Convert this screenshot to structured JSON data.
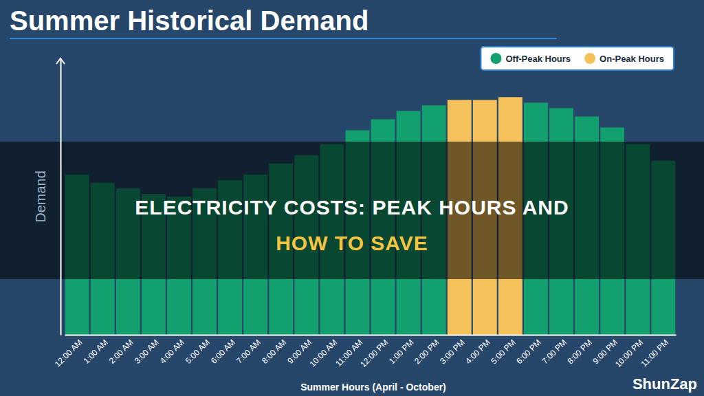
{
  "chart_data": {
    "type": "bar",
    "title": "Summer Historical Demand",
    "x_label": "Summer Hours (April - October)",
    "y_label": "Demand",
    "categories": [
      "12:00 AM",
      "1:00 AM",
      "2:00 AM",
      "3:00 AM",
      "4:00 AM",
      "5:00 AM",
      "6:00 AM",
      "7:00 AM",
      "8:00 AM",
      "9:00 AM",
      "10:00 AM",
      "11:00 AM",
      "12:00 PM",
      "1:00 PM",
      "2:00 PM",
      "3:00 PM",
      "4:00 PM",
      "5:00 PM",
      "6:00 PM",
      "7:00 PM",
      "8:00 PM",
      "9:00 PM",
      "10:00 PM",
      "11:00 PM"
    ],
    "series": [
      {
        "name": "Off-Peak Hours",
        "color": "#13a06f",
        "values": [
          58,
          55,
          53,
          51,
          50,
          53,
          56,
          58,
          62,
          65,
          69,
          74,
          78,
          81,
          83,
          null,
          null,
          null,
          84,
          82,
          79,
          75,
          69,
          63
        ]
      },
      {
        "name": "On-Peak Hours",
        "color": "#f5c15a",
        "values": [
          null,
          null,
          null,
          null,
          null,
          null,
          null,
          null,
          null,
          null,
          null,
          null,
          null,
          null,
          null,
          85,
          85,
          86,
          null,
          null,
          null,
          null,
          null,
          null
        ]
      }
    ],
    "ylim": [
      0,
      100
    ],
    "legend": "top-right",
    "tick_labels": "x",
    "annotations": [
      "ELECTRICITY COSTS: PEAK HOURS AND",
      "HOW TO SAVE",
      "ShunZap"
    ]
  }
}
